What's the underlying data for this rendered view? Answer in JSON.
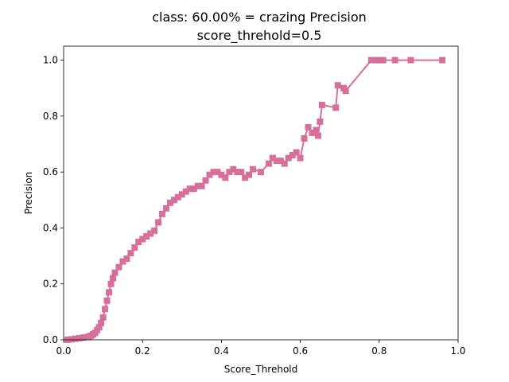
{
  "chart_data": {
    "type": "line",
    "title_line1": "class: 60.00% = crazing Precision",
    "title_line2": "score_threhold=0.5",
    "xlabel": "Score_Threhold",
    "ylabel": "Precision",
    "xlim": [
      0.0,
      1.0
    ],
    "ylim": [
      0.0,
      1.05
    ],
    "x_ticks": [
      "0.0",
      "0.2",
      "0.4",
      "0.6",
      "0.8",
      "1.0"
    ],
    "y_ticks": [
      "0.0",
      "0.2",
      "0.4",
      "0.6",
      "0.8",
      "1.0"
    ],
    "grid": false,
    "marker": "square",
    "color": "#d6709a",
    "series": [
      {
        "x": [
          0.01,
          0.02,
          0.03,
          0.04,
          0.05,
          0.06,
          0.065,
          0.07,
          0.075,
          0.08,
          0.085,
          0.09,
          0.095,
          0.1,
          0.105,
          0.11,
          0.115,
          0.12,
          0.125,
          0.13,
          0.14,
          0.15,
          0.16,
          0.17,
          0.18,
          0.19,
          0.2,
          0.21,
          0.22,
          0.23,
          0.24,
          0.25,
          0.26,
          0.27,
          0.28,
          0.29,
          0.3,
          0.31,
          0.32,
          0.33,
          0.34,
          0.35,
          0.36,
          0.37,
          0.38,
          0.39,
          0.4,
          0.41,
          0.42,
          0.43,
          0.44,
          0.45,
          0.46,
          0.47,
          0.48,
          0.5,
          0.52,
          0.53,
          0.54,
          0.55,
          0.56,
          0.57,
          0.58,
          0.59,
          0.6,
          0.61,
          0.62,
          0.63,
          0.64,
          0.645,
          0.65,
          0.655,
          0.69,
          0.695,
          0.71,
          0.715,
          0.78,
          0.79,
          0.8,
          0.81,
          0.84,
          0.88,
          0.96
        ],
        "y": [
          0.0,
          0.002,
          0.004,
          0.006,
          0.008,
          0.01,
          0.012,
          0.015,
          0.02,
          0.025,
          0.035,
          0.045,
          0.06,
          0.08,
          0.11,
          0.14,
          0.17,
          0.2,
          0.22,
          0.24,
          0.26,
          0.28,
          0.29,
          0.31,
          0.33,
          0.35,
          0.36,
          0.37,
          0.38,
          0.39,
          0.42,
          0.45,
          0.47,
          0.49,
          0.5,
          0.51,
          0.52,
          0.53,
          0.54,
          0.54,
          0.55,
          0.55,
          0.57,
          0.59,
          0.6,
          0.6,
          0.59,
          0.58,
          0.6,
          0.61,
          0.6,
          0.6,
          0.58,
          0.59,
          0.61,
          0.6,
          0.63,
          0.65,
          0.64,
          0.64,
          0.63,
          0.65,
          0.66,
          0.67,
          0.65,
          0.72,
          0.76,
          0.74,
          0.75,
          0.73,
          0.78,
          0.84,
          0.83,
          0.91,
          0.9,
          0.89,
          1.0,
          1.0,
          1.0,
          1.0,
          1.0,
          1.0,
          1.0
        ]
      }
    ]
  }
}
